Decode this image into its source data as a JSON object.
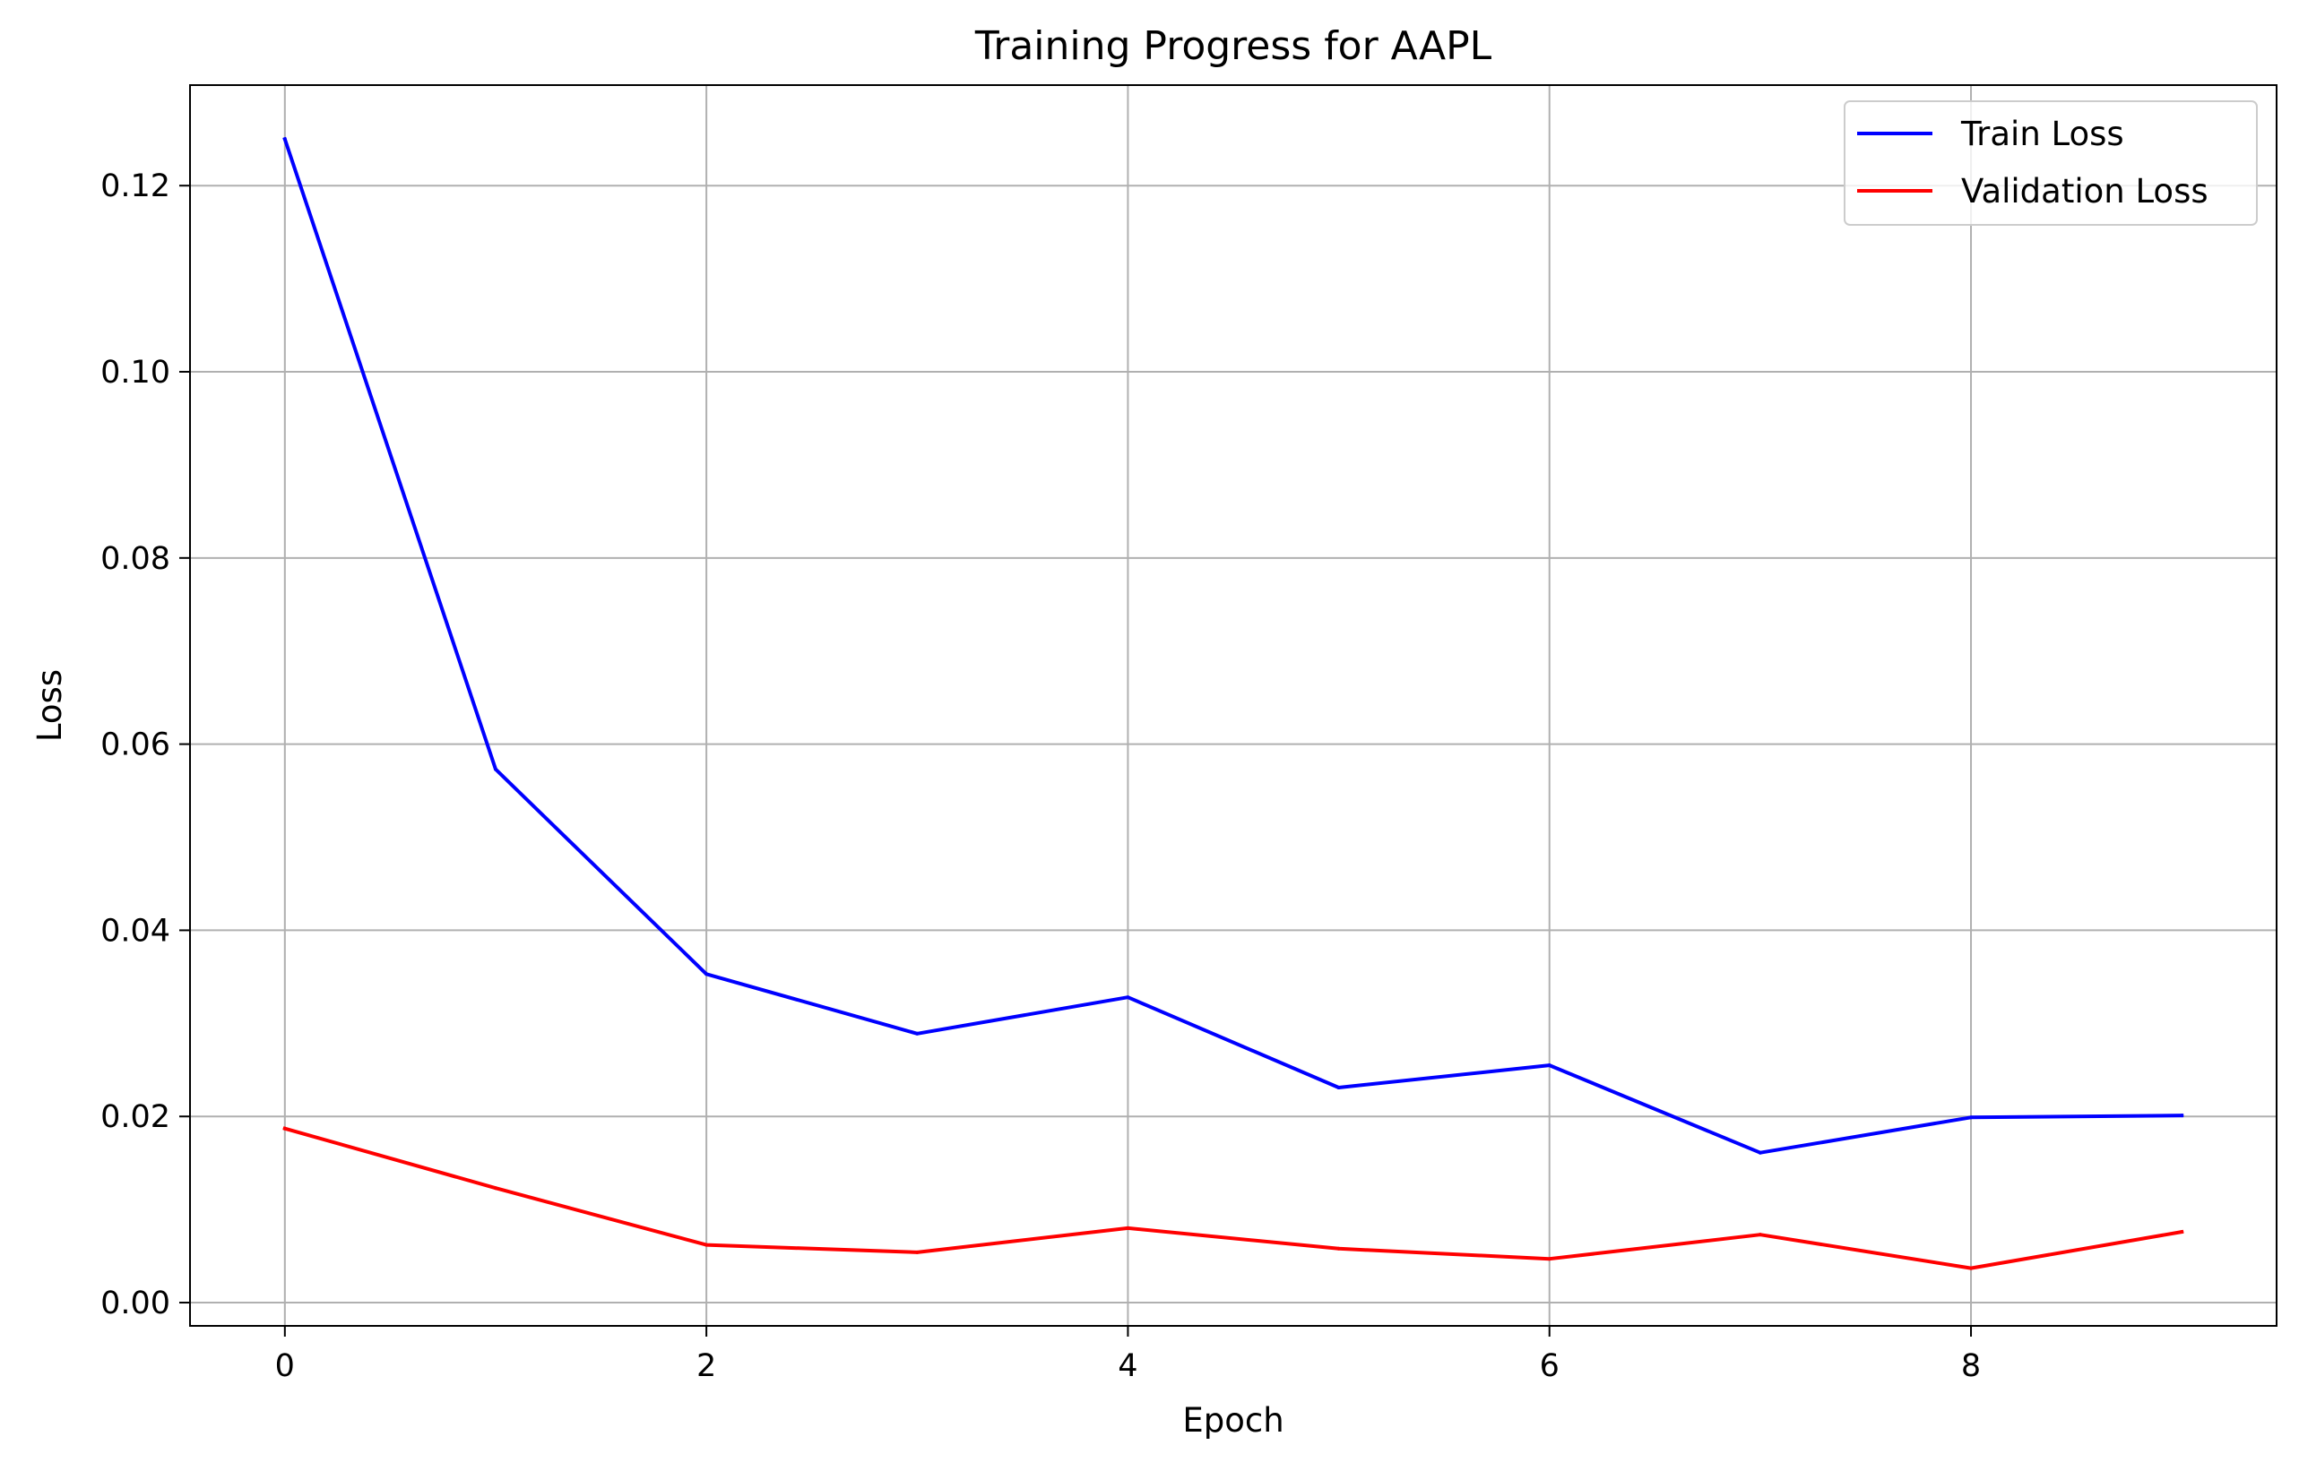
{
  "chart_data": {
    "type": "line",
    "title": "Training Progress for AAPL",
    "xlabel": "Epoch",
    "ylabel": "Loss",
    "x": [
      0,
      1,
      2,
      3,
      4,
      5,
      6,
      7,
      8,
      9
    ],
    "xlim": [
      -0.45,
      9.45
    ],
    "ylim": [
      -0.0025,
      0.1308
    ],
    "xticks": [
      0,
      2,
      4,
      6,
      8
    ],
    "xtick_labels": [
      "0",
      "2",
      "4",
      "6",
      "8"
    ],
    "yticks": [
      0.0,
      0.02,
      0.04,
      0.06,
      0.08,
      0.1,
      0.12
    ],
    "ytick_labels": [
      "0.00",
      "0.02",
      "0.04",
      "0.06",
      "0.08",
      "0.10",
      "0.12"
    ],
    "grid": true,
    "legend_position": "top-right",
    "series": [
      {
        "name": "Train Loss",
        "color": "#0000ff",
        "values": [
          0.125,
          0.0573,
          0.0353,
          0.0289,
          0.0328,
          0.0231,
          0.0255,
          0.0161,
          0.0199,
          0.0201
        ]
      },
      {
        "name": "Validation Loss",
        "color": "#ff0000",
        "values": [
          0.0187,
          0.0123,
          0.0062,
          0.0054,
          0.008,
          0.0058,
          0.0047,
          0.0073,
          0.0037,
          0.0076
        ]
      }
    ]
  }
}
